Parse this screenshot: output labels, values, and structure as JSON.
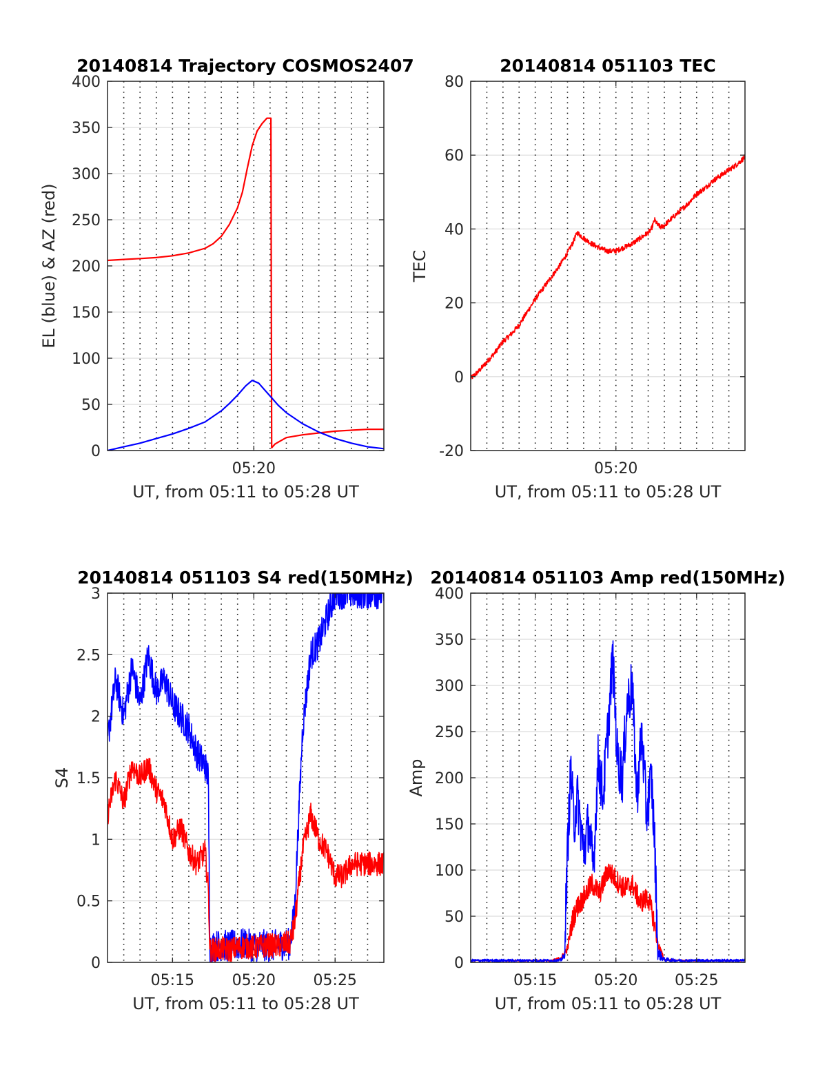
{
  "colors": {
    "az": "#ff0000",
    "el": "#0000ff",
    "red": "#ff0000",
    "blue": "#0000ff",
    "grid": "#dcdcdc"
  },
  "chart_data": [
    {
      "id": "trajectory",
      "type": "line",
      "title": "20140814 Trajectory COSMOS2407",
      "xlabel": "UT, from 05:11 to 05:28 UT",
      "ylabel": "EL (blue) & AZ (red)",
      "xlim": [
        0,
        17
      ],
      "ylim": [
        0,
        400
      ],
      "yticks": [
        0,
        50,
        100,
        150,
        200,
        250,
        300,
        350,
        400
      ],
      "xticks": [
        {
          "x": 9,
          "label": "05:20"
        }
      ],
      "xgrid_step": 1,
      "series": [
        {
          "color": "#ff0000",
          "x": [
            0,
            1,
            2,
            3,
            4,
            5,
            6,
            6.5,
            7,
            7.5,
            8,
            8.3,
            8.6,
            8.9,
            9.2,
            9.5,
            9.8,
            10.05,
            10.1,
            10.3,
            10.6,
            11,
            12,
            13,
            14,
            15,
            16,
            17
          ],
          "y": [
            206,
            207,
            208,
            209,
            211,
            214,
            219,
            224,
            232,
            245,
            263,
            280,
            306,
            330,
            346,
            354,
            360,
            360,
            3,
            7,
            10,
            14,
            17,
            19,
            21,
            22,
            23,
            23
          ]
        },
        {
          "color": "#0000ff",
          "x": [
            0,
            1,
            2,
            3,
            4,
            5,
            6,
            7,
            7.5,
            8,
            8.5,
            8.9,
            9.3,
            9.6,
            10,
            10.5,
            11,
            12,
            13,
            14,
            15,
            16,
            17
          ],
          "y": [
            0,
            4,
            8,
            13,
            18,
            24,
            31,
            43,
            51,
            60,
            70,
            76,
            73,
            67,
            59,
            49,
            41,
            29,
            20,
            13,
            8,
            4,
            2
          ]
        }
      ]
    },
    {
      "id": "tec",
      "type": "line",
      "title": "20140814 051103 TEC",
      "xlabel": "UT, from 05:11 to 05:28 UT",
      "ylabel": "TEC",
      "xlim": [
        0,
        17
      ],
      "ylim": [
        -20,
        80
      ],
      "yticks": [
        -20,
        0,
        20,
        40,
        60,
        80
      ],
      "xticks": [
        {
          "x": 9,
          "label": "05:20"
        }
      ],
      "xgrid_step": 1,
      "series": [
        {
          "color": "#ff0000",
          "x": [
            0,
            0.5,
            1,
            1.5,
            2,
            2.5,
            3,
            3.5,
            4,
            4.5,
            5,
            5.5,
            6,
            6.3,
            6.6,
            7,
            7.5,
            8,
            8.5,
            9,
            9.5,
            10,
            10.5,
            11,
            11.2,
            11.4,
            11.6,
            11.8,
            12,
            12.5,
            13,
            13.5,
            14,
            14.5,
            15,
            15.5,
            16,
            16.5,
            17
          ],
          "y": [
            -0.5,
            1.5,
            4,
            6.5,
            9.5,
            11.5,
            14,
            17.5,
            21,
            24,
            27,
            30,
            33.5,
            36,
            39,
            37.5,
            36,
            34.8,
            34,
            34.1,
            35,
            36,
            37.5,
            39,
            40,
            42.5,
            41,
            40.5,
            41,
            43,
            45,
            47,
            49.5,
            51,
            53,
            54.5,
            56,
            57.5,
            59.5
          ],
          "noise": 0.7
        }
      ]
    },
    {
      "id": "s4",
      "type": "line",
      "title": "20140814 051103 S4 red(150MHz)",
      "xlabel": "UT, from 05:11 to 05:28 UT",
      "ylabel": "S4",
      "xlim": [
        0,
        17
      ],
      "ylim": [
        0,
        3
      ],
      "yticks": [
        0,
        0.5,
        1,
        1.5,
        2,
        2.5,
        3
      ],
      "xticks": [
        {
          "x": 4,
          "label": "05:15"
        },
        {
          "x": 9,
          "label": "05:20"
        },
        {
          "x": 14,
          "label": "05:25"
        }
      ],
      "xgrid_step": 1,
      "series": [
        {
          "color": "#0000ff",
          "x": [
            0,
            0.5,
            1,
            1.5,
            2,
            2.5,
            3,
            3.5,
            4,
            4.5,
            5,
            5.5,
            6,
            6.2,
            6.3,
            6.5,
            7,
            7.5,
            8,
            8.5,
            9,
            9.5,
            10,
            10.5,
            11,
            11.2,
            11.5,
            12,
            12.5,
            13,
            13.5,
            14,
            14.5,
            15,
            15.5,
            16,
            16.5,
            17
          ],
          "y": [
            1.8,
            2.3,
            2.0,
            2.4,
            2.1,
            2.5,
            2.2,
            2.3,
            2.1,
            2.0,
            1.9,
            1.7,
            1.6,
            1.5,
            0.12,
            0.13,
            0.14,
            0.13,
            0.14,
            0.15,
            0.13,
            0.14,
            0.13,
            0.14,
            0.15,
            0.15,
            0.4,
            1.9,
            2.5,
            2.6,
            2.8,
            3.0,
            3.0,
            3.0,
            3.0,
            3.0,
            3.0,
            3.0
          ],
          "noise": 0.13
        },
        {
          "color": "#ff0000",
          "x": [
            0,
            0.5,
            1,
            1.5,
            2,
            2.5,
            3,
            3.5,
            4,
            4.5,
            5,
            5.5,
            6,
            6.2,
            6.3,
            6.5,
            7,
            7.5,
            8,
            8.5,
            9,
            9.5,
            10,
            10.5,
            11,
            11.2,
            11.5,
            12,
            12.5,
            13,
            13.5,
            14,
            14.5,
            15,
            15.5,
            16,
            16.5,
            17
          ],
          "y": [
            1.2,
            1.5,
            1.3,
            1.6,
            1.5,
            1.6,
            1.4,
            1.3,
            1.0,
            1.1,
            0.9,
            0.8,
            0.9,
            0.6,
            0.1,
            0.1,
            0.11,
            0.1,
            0.12,
            0.13,
            0.12,
            0.13,
            0.14,
            0.13,
            0.16,
            0.15,
            0.3,
            0.9,
            1.2,
            1.0,
            0.9,
            0.7,
            0.7,
            0.8,
            0.8,
            0.8,
            0.8,
            0.8
          ],
          "noise": 0.1
        }
      ]
    },
    {
      "id": "amp",
      "type": "line",
      "title": "20140814 051103 Amp red(150MHz)",
      "xlabel": "UT, from 05:11 to 05:28 UT",
      "ylabel": "Amp",
      "xlim": [
        0,
        17
      ],
      "ylim": [
        0,
        400
      ],
      "yticks": [
        0,
        50,
        100,
        150,
        200,
        250,
        300,
        350,
        400
      ],
      "xticks": [
        {
          "x": 4,
          "label": "05:15"
        },
        {
          "x": 9,
          "label": "05:20"
        },
        {
          "x": 14,
          "label": "05:25"
        }
      ],
      "xgrid_step": 1,
      "series": [
        {
          "color": "#ff0000",
          "x": [
            0,
            2,
            4,
            5,
            5.6,
            6,
            6.3,
            6.6,
            7,
            7.5,
            8,
            8.5,
            9,
            9.5,
            10,
            10.5,
            11,
            11.3,
            11.6,
            12,
            13,
            14,
            15,
            16,
            17
          ],
          "y": [
            2,
            2,
            2,
            2,
            5,
            15,
            45,
            60,
            70,
            85,
            75,
            100,
            90,
            80,
            85,
            65,
            70,
            50,
            20,
            3,
            2,
            2,
            2,
            2,
            2
          ],
          "noise": 12
        },
        {
          "color": "#0000ff",
          "x": [
            0,
            2,
            4,
            5,
            5.5,
            5.8,
            6,
            6.2,
            6.4,
            6.6,
            7,
            7.3,
            7.6,
            7.9,
            8.2,
            8.5,
            8.8,
            9.1,
            9.4,
            9.7,
            10,
            10.3,
            10.6,
            10.9,
            11.2,
            11.4,
            11.6,
            12,
            13,
            14,
            15,
            16,
            17
          ],
          "y": [
            2,
            2,
            2,
            2,
            2,
            6,
            120,
            210,
            150,
            180,
            120,
            150,
            100,
            220,
            180,
            250,
            330,
            220,
            200,
            280,
            300,
            180,
            250,
            160,
            200,
            130,
            10,
            3,
            2,
            2,
            2,
            2,
            2
          ],
          "noise": 30
        }
      ]
    }
  ]
}
